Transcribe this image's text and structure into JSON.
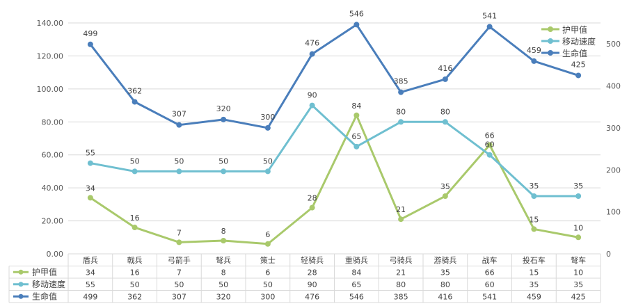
{
  "chart_data": {
    "type": "line",
    "title": "",
    "categories": [
      "盾兵",
      "戟兵",
      "弓箭手",
      "弩兵",
      "策士",
      "轻骑兵",
      "重骑兵",
      "弓骑兵",
      "游骑兵",
      "战车",
      "投石车",
      "弩车"
    ],
    "series": [
      {
        "name": "护甲值",
        "axis": "left",
        "color": "#a9c96b",
        "values": [
          34,
          16,
          7,
          8,
          6,
          28,
          84,
          21,
          35,
          66,
          15,
          10
        ]
      },
      {
        "name": "移动速度",
        "axis": "left",
        "color": "#6fbfd0",
        "values": [
          55,
          50,
          50,
          50,
          50,
          90,
          65,
          80,
          80,
          60,
          35,
          35
        ]
      },
      {
        "name": "生命值",
        "axis": "right",
        "color": "#4a7ebb",
        "values": [
          499,
          362,
          307,
          320,
          300,
          476,
          546,
          385,
          416,
          541,
          459,
          425
        ]
      }
    ],
    "left_axis": {
      "ylim": [
        0,
        140
      ],
      "step": 20,
      "ticks": [
        "0.00",
        "20.00",
        "40.00",
        "60.00",
        "80.00",
        "100.00",
        "120.00",
        "140.00"
      ]
    },
    "right_axis": {
      "ylim": [
        0,
        550
      ],
      "step": 100,
      "ticks": [
        "0",
        "100",
        "200",
        "300",
        "400",
        "500"
      ]
    },
    "legend_position": "top-right",
    "grid": true,
    "data_table": true
  }
}
